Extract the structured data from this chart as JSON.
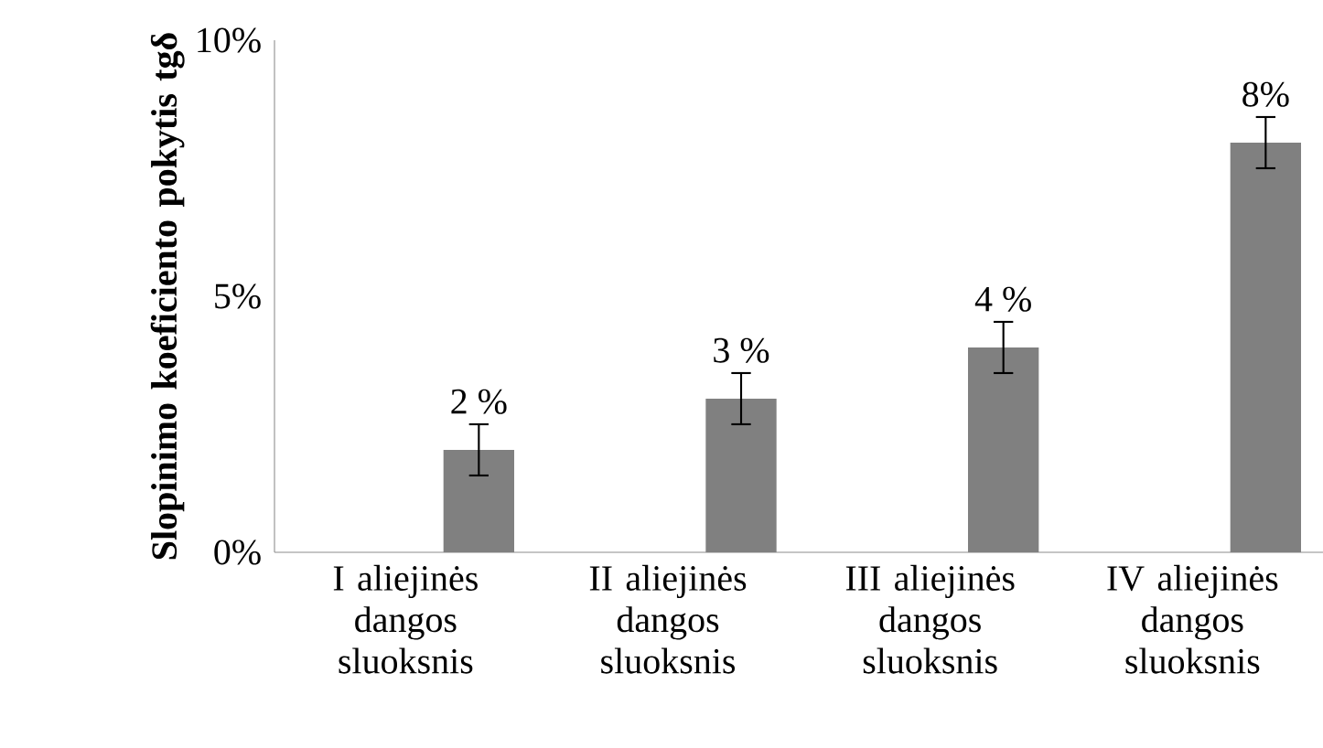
{
  "chart_data": {
    "type": "bar",
    "ylabel": "Slopinimo koeficiento pokytis tgδ",
    "categories": [
      "I aliejinės dangos sluoksnis",
      "II aliejinės dangos sluoksnis",
      "III aliejinės dangos sluoksnis",
      "IV aliejinės dangos sluoksnis"
    ],
    "values": [
      2,
      3,
      4,
      8
    ],
    "errors": [
      0.5,
      0.5,
      0.5,
      0.5
    ],
    "color": "#808080",
    "value_labels": [
      "2 %",
      "3 %",
      "4 %",
      "8%"
    ],
    "ylim": [
      0,
      10
    ],
    "yticks": [
      {
        "value": 0,
        "label": "0%"
      },
      {
        "value": 5,
        "label": "5%"
      },
      {
        "value": 10,
        "label": "10%"
      }
    ],
    "grid": false
  }
}
